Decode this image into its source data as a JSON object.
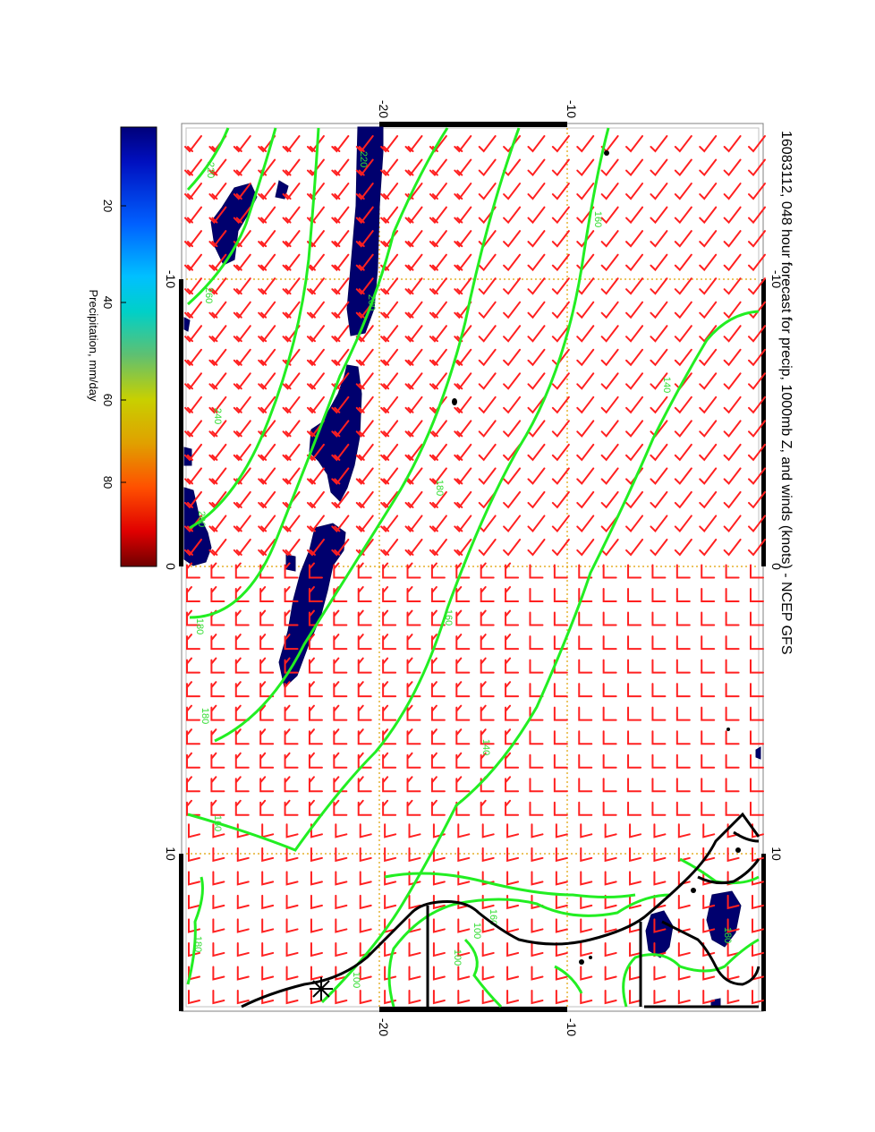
{
  "title": "16083112, 048 hour forecast for precip, 1000mb Z, and winds (knots) - NCEP GFS",
  "colorbar": {
    "label": "Precipitation, mm/day",
    "ticks": [
      "20",
      "40",
      "60",
      "80"
    ],
    "colors": [
      "#000090",
      "#0040ff",
      "#00c8ff",
      "#00d0c0",
      "#60c060",
      "#c8d000",
      "#ff8000",
      "#ff2000",
      "#800000"
    ]
  },
  "axes": {
    "top_ticks": [
      "-10",
      "0",
      "10"
    ],
    "bottom_ticks": [
      "-10",
      "0",
      "10"
    ],
    "left_ticks": [
      "-20",
      "-10"
    ],
    "right_ticks": [
      "-20",
      "-10"
    ]
  },
  "contour_labels": [
    "220",
    "200",
    "180",
    "160",
    "140",
    "160",
    "140",
    "160",
    "180",
    "220",
    "240",
    "260",
    "200",
    "180",
    "160",
    "100",
    "100",
    "100",
    "180",
    "180"
  ],
  "colors": {
    "wind_barb": "#ff2020",
    "geopotential_contour": "#22ee22",
    "precip_fill": "#00006e",
    "coastline": "#000000",
    "gridline": "#e0a000"
  },
  "icons": {
    "station_marker": "asterisk-star-icon"
  }
}
